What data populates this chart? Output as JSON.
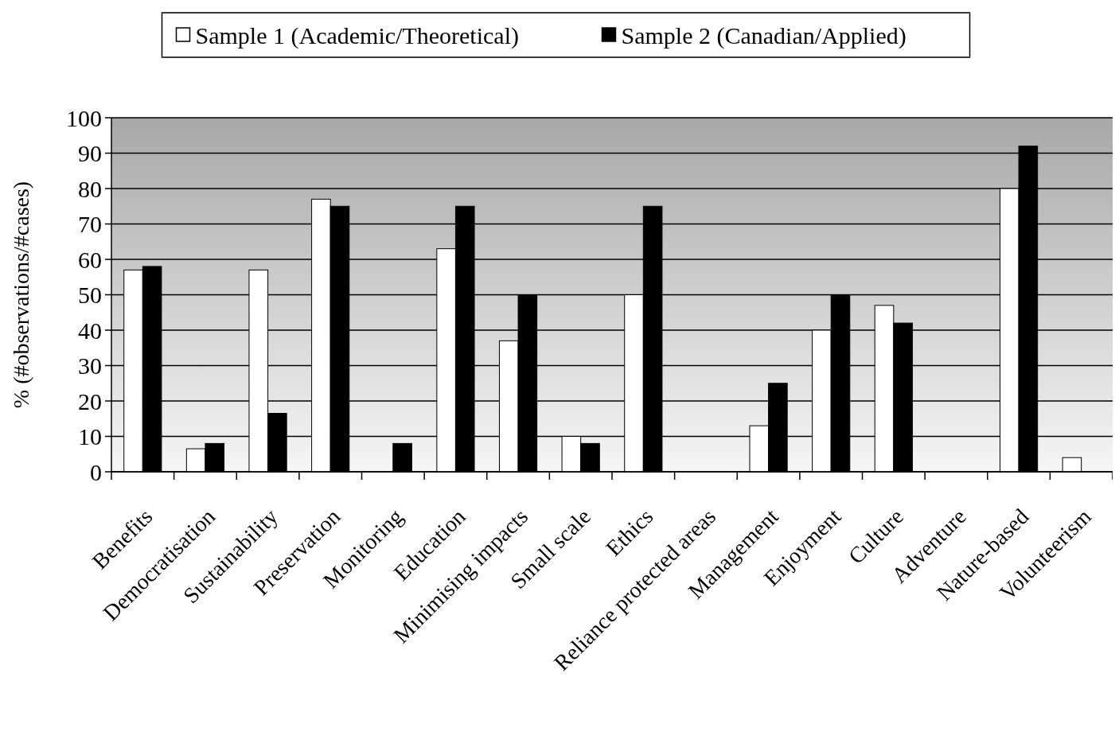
{
  "chart_data": {
    "type": "bar",
    "ylabel": "% (#observations/#cases)",
    "categories": [
      "Benefits",
      "Democratisation",
      "Sustainability",
      "Preservation",
      "Monitoring",
      "Education",
      "Minimising impacts",
      "Small scale",
      "Ethics",
      "Reliance protected areas",
      "Management",
      "Enjoyment",
      "Culture",
      "Adventure",
      "Nature-based",
      "Volunteerism"
    ],
    "series": [
      {
        "name": "Sample 1 (Academic/Theoretical)",
        "color": "#ffffff",
        "values": [
          57,
          6.5,
          57,
          77,
          0,
          63,
          37,
          10,
          50,
          0,
          13,
          40,
          47,
          0,
          80,
          4
        ]
      },
      {
        "name": "Sample 2 (Canadian/Applied)",
        "color": "#000000",
        "values": [
          58,
          8,
          16.5,
          75,
          8,
          75,
          50,
          8,
          75,
          0,
          25,
          50,
          42,
          0,
          92,
          0
        ]
      }
    ],
    "ylim": [
      0,
      100
    ],
    "yticks": [
      0,
      10,
      20,
      30,
      40,
      50,
      60,
      70,
      80,
      90,
      100
    ],
    "grid": "y",
    "legend": "top"
  }
}
